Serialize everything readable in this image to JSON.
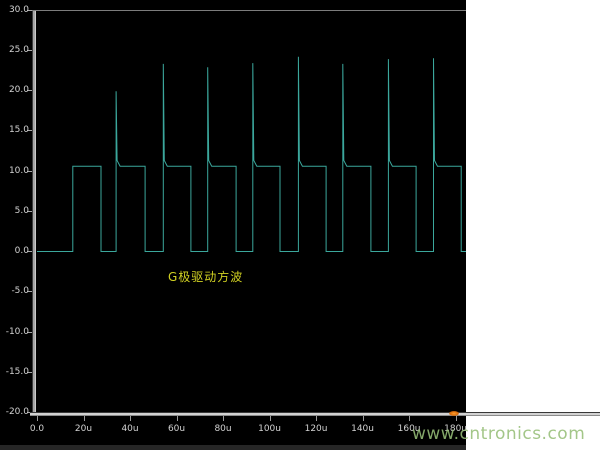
{
  "watermark": "www.cntronics.com",
  "annotation": {
    "text": "G极驱动方波",
    "color": "#d2d222"
  },
  "marker": {
    "name": "orange-cursor-marker",
    "color": "#e07818"
  },
  "chart_data": {
    "type": "line",
    "title": "",
    "xlabel": "",
    "ylabel": "",
    "x_unit": "us",
    "xlim": [
      0,
      184.5
    ],
    "ylim": [
      -20,
      30
    ],
    "grid": false,
    "legend": "none",
    "background": "#000000",
    "x_ticks": [
      {
        "t": 0,
        "label": "0.0"
      },
      {
        "t": 20,
        "label": "20u"
      },
      {
        "t": 40,
        "label": "40u"
      },
      {
        "t": 60,
        "label": "60u"
      },
      {
        "t": 80,
        "label": "80u"
      },
      {
        "t": 100,
        "label": "100u"
      },
      {
        "t": 120,
        "label": "120u"
      },
      {
        "t": 140,
        "label": "140u"
      },
      {
        "t": 160,
        "label": "160u"
      },
      {
        "t": 180,
        "label": "180u"
      }
    ],
    "y_ticks": [
      {
        "v": 30,
        "label": "30.0"
      },
      {
        "v": 25,
        "label": "25.0"
      },
      {
        "v": 20,
        "label": "20.0"
      },
      {
        "v": 15,
        "label": "15.0"
      },
      {
        "v": 10,
        "label": "10.0"
      },
      {
        "v": 5,
        "label": "5.0"
      },
      {
        "v": 0,
        "label": "0.0"
      },
      {
        "v": -5,
        "label": "-5.0"
      },
      {
        "v": -10,
        "label": "-10.0"
      },
      {
        "v": -15,
        "label": "-15.0"
      },
      {
        "v": -20,
        "label": "-20.0"
      }
    ],
    "series": [
      {
        "name": "gate-drive-square-wave",
        "color": "#3ba79c",
        "low_level": 0,
        "high_level": 10.6,
        "overshoot_settle": 11.3,
        "pulses": [
          {
            "rise": 15.4,
            "fall": 27.5,
            "peak": null
          },
          {
            "rise": 34.0,
            "fall": 46.5,
            "peak": 19.9
          },
          {
            "rise": 54.3,
            "fall": 66.2,
            "peak": 23.3
          },
          {
            "rise": 73.4,
            "fall": 85.6,
            "peak": 22.9
          },
          {
            "rise": 92.8,
            "fall": 104.5,
            "peak": 23.4
          },
          {
            "rise": 112.4,
            "fall": 124.3,
            "peak": 24.2
          },
          {
            "rise": 131.5,
            "fall": 143.6,
            "peak": 23.3
          },
          {
            "rise": 151.1,
            "fall": 163.0,
            "peak": 23.9
          },
          {
            "rise": 170.5,
            "fall": 182.4,
            "peak": 24.0
          }
        ]
      }
    ]
  }
}
